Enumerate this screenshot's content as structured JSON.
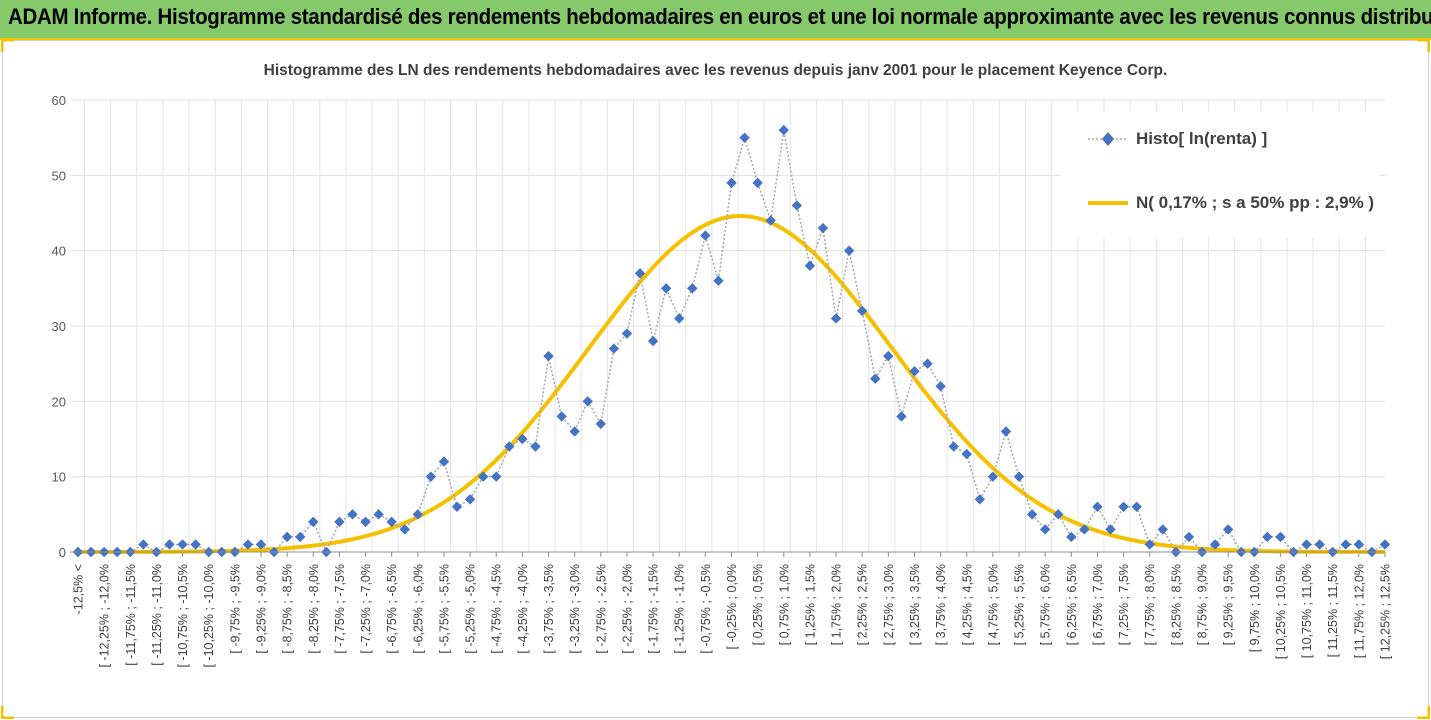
{
  "banner": {
    "title": "ADAM Informe. Histogramme standardisé des rendements hebdomadaires en euros et une loi normale approximante avec les revenus connus distribués"
  },
  "colors": {
    "banner_bg": "#86c96a",
    "accent": "#f2c200",
    "series_histo": "#4472c4",
    "series_normal": "#f5c000",
    "connector": "#a6a6a6"
  },
  "chart_data": {
    "type": "line",
    "title": "Histogramme des LN des rendements hebdomadaires avec les revenus depuis janv 2001 pour le placement Keyence Corp.",
    "ylim": [
      0,
      60
    ],
    "yticks": [
      0,
      10,
      20,
      30,
      40,
      50,
      60
    ],
    "grid": true,
    "legend_position": "top-right",
    "categories": [
      "-12,5% <",
      "[ -12,25% ; -12,0%",
      "[ -11,75% ; -11,5%",
      "[ -11,25% ; -11,0%",
      "[ -10,75% ; -10,5%",
      "[ -10,25% ; -10,0%",
      "[ -9,75% ; -9,5%",
      "[ -9,25% ; -9,0%",
      "[ -8,75% ; -8,5%",
      "[ -8,25% ; -8,0%",
      "[ -7,75% ; -7,5%",
      "[ -7,25% ; -7,0%",
      "[ -6,75% ; -6,5%",
      "[ -6,25% ; -6,0%",
      "[ -5,75% ; -5,5%",
      "[ -5,25% ; -5,0%",
      "[ -4,75% ; -4,5%",
      "[ -4,25% ; -4,0%",
      "[ -3,75% ; -3,5%",
      "[ -3,25% ; -3,0%",
      "[ -2,75% ; -2,5%",
      "[ -2,25% ; -2,0%",
      "[ -1,75% ; -1,5%",
      "[ -1,25% ; -1,0%",
      "[ -0,75% ; -0,5%",
      "[ -0,25% ; 0,0%",
      "[ 0,25% ; 0,5%",
      "[ 0,75% ; 1,0%",
      "[ 1,25% ; 1,5%",
      "[ 1,75% ; 2,0%",
      "[ 2,25% ; 2,5%",
      "[ 2,75% ; 3,0%",
      "[ 3,25% ; 3,5%",
      "[ 3,75% ; 4,0%",
      "[ 4,25% ; 4,5%",
      "[ 4,75% ; 5,0%",
      "[ 5,25% ; 5,5%",
      "[ 5,75% ; 6,0%",
      "[ 6,25% ; 6,5%",
      "[ 6,75% ; 7,0%",
      "[ 7,25% ; 7,5%",
      "[ 7,75% ; 8,0%",
      "[ 8,25% ; 8,5%",
      "[ 8,75% ; 9,0%",
      "[ 9,25% ; 9,5%",
      "[ 9,75% ; 10,0%",
      "[ 10,25% ; 10,5%",
      "[ 10,75% ; 11,0%",
      "[ 11,25% ; 11,5%",
      "[ 11,75% ; 12,0%",
      "[ 12,25% ; 12,5%"
    ],
    "x": [
      -12.5,
      -12.25,
      -12.0,
      -11.75,
      -11.5,
      -11.25,
      -11.0,
      -10.75,
      -10.5,
      -10.25,
      -10.0,
      -9.75,
      -9.5,
      -9.25,
      -9.0,
      -8.75,
      -8.5,
      -8.25,
      -8.0,
      -7.75,
      -7.5,
      -7.25,
      -7.0,
      -6.75,
      -6.5,
      -6.25,
      -6.0,
      -5.75,
      -5.5,
      -5.25,
      -5.0,
      -4.75,
      -4.5,
      -4.25,
      -4.0,
      -3.75,
      -3.5,
      -3.25,
      -3.0,
      -2.75,
      -2.5,
      -2.25,
      -2.0,
      -1.75,
      -1.5,
      -1.25,
      -1.0,
      -0.75,
      -0.5,
      -0.25,
      0.0,
      0.25,
      0.5,
      0.75,
      1.0,
      1.25,
      1.5,
      1.75,
      2.0,
      2.25,
      2.5,
      2.75,
      3.0,
      3.25,
      3.5,
      3.75,
      4.0,
      4.25,
      4.5,
      4.75,
      5.0,
      5.25,
      5.5,
      5.75,
      6.0,
      6.25,
      6.5,
      6.75,
      7.0,
      7.25,
      7.5,
      7.75,
      8.0,
      8.25,
      8.5,
      8.75,
      9.0,
      9.25,
      9.5,
      9.75,
      10.0,
      10.25,
      10.5,
      10.75,
      11.0,
      11.25,
      11.5,
      11.75,
      12.0,
      12.25,
      12.5
    ],
    "series": [
      {
        "name": "Histo[ ln(renta) ]",
        "style": "dotted-line-with-diamond-markers",
        "values": [
          0,
          0,
          0,
          0,
          0,
          1,
          0,
          1,
          1,
          1,
          0,
          0,
          0,
          1,
          1,
          0,
          2,
          2,
          4,
          0,
          4,
          5,
          4,
          5,
          4,
          3,
          5,
          10,
          12,
          6,
          7,
          10,
          10,
          14,
          15,
          14,
          26,
          18,
          16,
          20,
          17,
          27,
          29,
          37,
          28,
          35,
          31,
          35,
          42,
          36,
          49,
          55,
          49,
          44,
          56,
          46,
          38,
          43,
          31,
          40,
          32,
          23,
          26,
          18,
          24,
          25,
          22,
          14,
          13,
          7,
          10,
          16,
          10,
          5,
          3,
          5,
          2,
          3,
          6,
          3,
          6,
          6,
          1,
          3,
          0,
          2,
          0,
          1,
          3,
          0,
          0,
          2,
          2,
          0,
          1,
          1,
          0,
          1,
          1,
          0,
          1
        ]
      },
      {
        "name": "N( 0,17% ; s a 50% pp : 2,9% )",
        "style": "smooth-line",
        "mean": 0.17,
        "sd": 2.9,
        "peak": 44.6
      }
    ]
  }
}
